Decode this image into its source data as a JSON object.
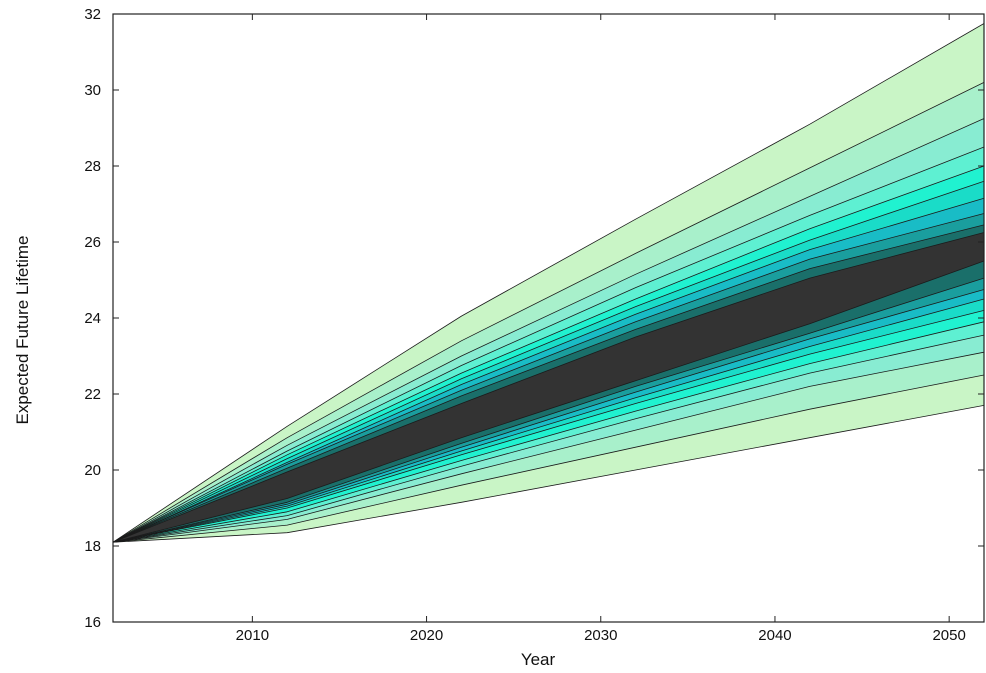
{
  "chart_data": {
    "type": "area",
    "title": "",
    "xlabel": "Year",
    "ylabel": "Expected Future Lifetime",
    "xlim": [
      2002,
      2052
    ],
    "ylim": [
      16,
      32
    ],
    "xticks": [
      2010,
      2020,
      2030,
      2040,
      2050
    ],
    "yticks": [
      16,
      18,
      20,
      22,
      24,
      26,
      28,
      30,
      32
    ],
    "grid": false,
    "x": [
      2002,
      2012,
      2022,
      2032,
      2042,
      2052
    ],
    "bands": [
      {
        "lower": [
          18.1,
          18.35,
          19.15,
          20.0,
          20.85,
          21.7
        ],
        "upper": [
          18.1,
          21.15,
          24.05,
          26.6,
          29.1,
          31.75
        ],
        "color": "#c9f5c6"
      },
      {
        "lower": [
          18.1,
          18.55,
          19.6,
          20.6,
          21.6,
          22.5
        ],
        "upper": [
          18.1,
          20.85,
          23.4,
          25.7,
          27.95,
          30.2
        ],
        "color": "#a8f0cb"
      },
      {
        "lower": [
          18.1,
          18.7,
          19.9,
          21.05,
          22.2,
          23.1
        ],
        "upper": [
          18.1,
          20.65,
          23.0,
          25.15,
          27.2,
          29.25
        ],
        "color": "#88ecd2"
      },
      {
        "lower": [
          18.1,
          18.8,
          20.1,
          21.35,
          22.55,
          23.55
        ],
        "upper": [
          18.1,
          20.5,
          22.75,
          24.8,
          26.7,
          28.5
        ],
        "color": "#5ef0d2"
      },
      {
        "lower": [
          18.1,
          18.9,
          20.25,
          21.55,
          22.8,
          23.9
        ],
        "upper": [
          18.1,
          20.4,
          22.55,
          24.5,
          26.35,
          28.0
        ],
        "color": "#20f2d0"
      },
      {
        "lower": [
          18.1,
          19.0,
          20.4,
          21.75,
          23.05,
          24.2
        ],
        "upper": [
          18.1,
          20.3,
          22.4,
          24.3,
          26.05,
          27.6
        ],
        "color": "#1adcc8"
      },
      {
        "lower": [
          18.1,
          19.05,
          20.5,
          21.9,
          23.25,
          24.5
        ],
        "upper": [
          18.1,
          20.2,
          22.25,
          24.1,
          25.8,
          27.15
        ],
        "color": "#19bcc6"
      },
      {
        "lower": [
          18.1,
          19.1,
          20.6,
          22.05,
          23.45,
          24.75
        ],
        "upper": [
          18.1,
          20.15,
          22.1,
          23.9,
          25.55,
          26.75
        ],
        "color": "#1a9e9e"
      },
      {
        "lower": [
          18.1,
          19.15,
          20.7,
          22.2,
          23.6,
          25.05
        ],
        "upper": [
          18.1,
          20.05,
          21.95,
          23.7,
          25.3,
          26.45
        ],
        "color": "#1a6f6a"
      },
      {
        "lower": [
          18.1,
          19.25,
          20.85,
          22.35,
          23.85,
          25.5
        ],
        "upper": [
          18.1,
          19.95,
          21.75,
          23.5,
          25.05,
          26.25
        ],
        "color": "#333333"
      }
    ]
  }
}
